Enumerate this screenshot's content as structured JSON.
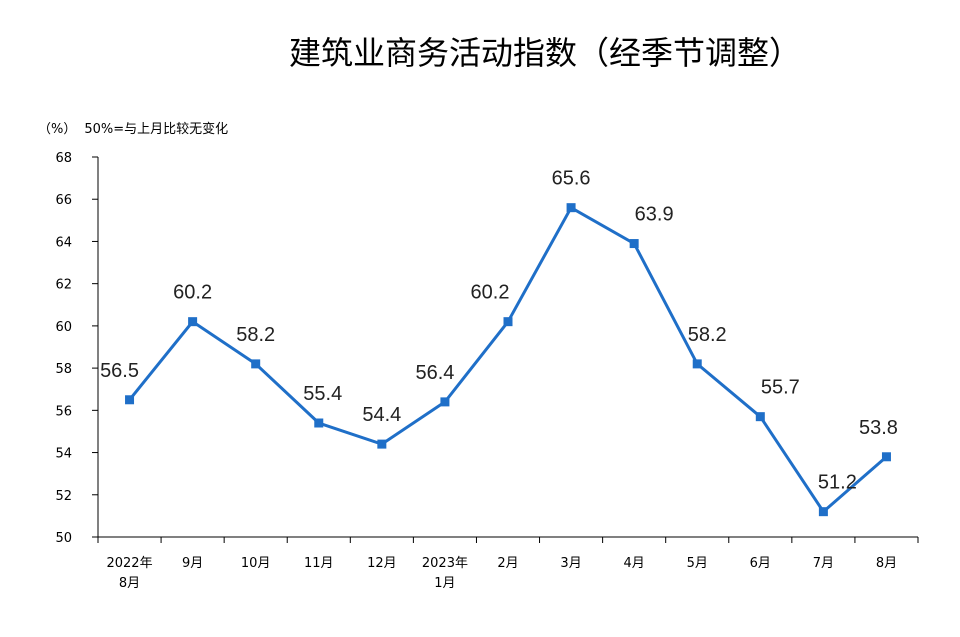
{
  "title": "建筑业商务活动指数（经季节调整）",
  "unit": "（%）",
  "note": "50%=与上月比较无变化",
  "chart_data": {
    "type": "line",
    "title": "建筑业商务活动指数（经季节调整）",
    "ylabel": "（%）",
    "categories": [
      [
        "2022年",
        "8月"
      ],
      [
        "9月"
      ],
      [
        "10月"
      ],
      [
        "11月"
      ],
      [
        "12月"
      ],
      [
        "2023年",
        "1月"
      ],
      [
        "2月"
      ],
      [
        "3月"
      ],
      [
        "4月"
      ],
      [
        "5月"
      ],
      [
        "6月"
      ],
      [
        "7月"
      ],
      [
        "8月"
      ]
    ],
    "values": [
      56.5,
      60.2,
      58.2,
      55.4,
      54.4,
      56.4,
      60.2,
      65.6,
      63.9,
      58.2,
      55.7,
      51.2,
      53.8
    ],
    "data_labels": [
      "56.5",
      "60.2",
      "58.2",
      "55.4",
      "54.4",
      "56.4",
      "60.2",
      "65.6",
      "63.9",
      "58.2",
      "55.7",
      "51.2",
      "53.8"
    ],
    "ylim": [
      50,
      68
    ],
    "yticks": [
      50,
      52,
      54,
      56,
      58,
      60,
      62,
      64,
      66,
      68
    ],
    "grid": false,
    "legend": "none",
    "line_color": "#1f6fc8"
  }
}
